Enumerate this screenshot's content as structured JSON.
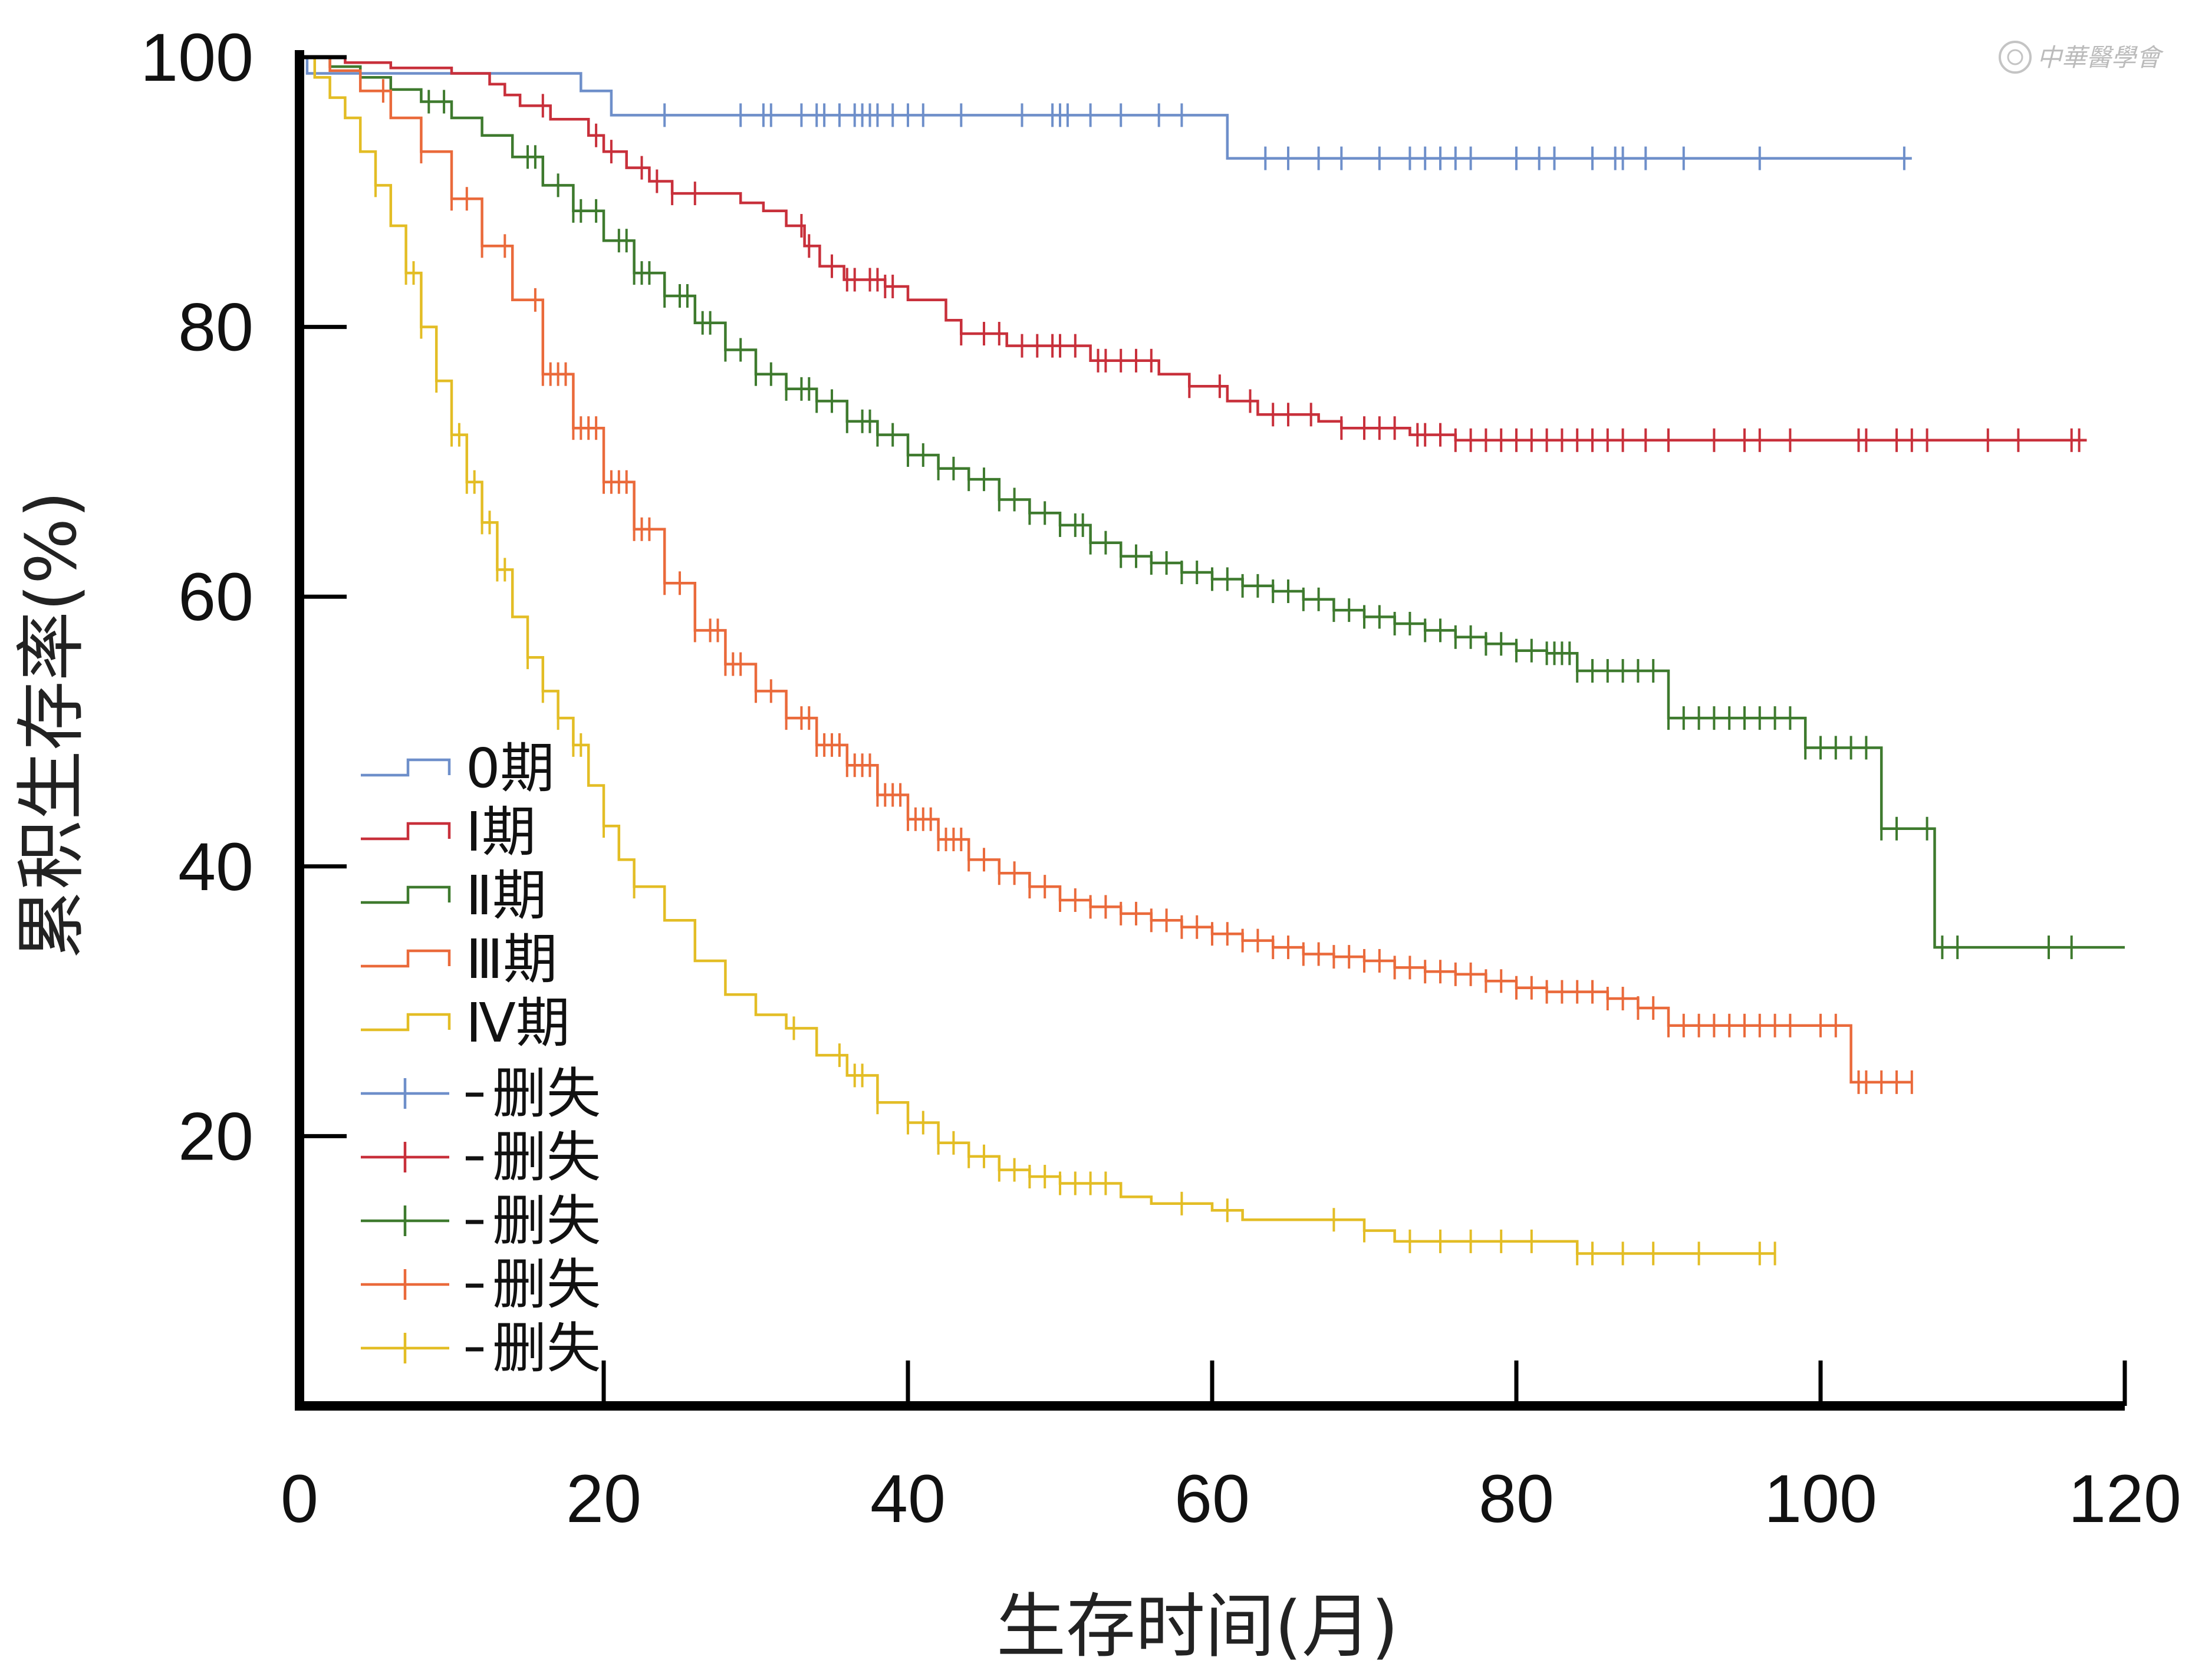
{
  "watermark": "中華醫學會",
  "chart_data": {
    "type": "line",
    "subtype": "kaplan-meier",
    "title": "",
    "xlabel": "生存时间(月)",
    "ylabel": "累积生存率(%)",
    "xlim": [
      0,
      120
    ],
    "ylim": [
      0,
      100
    ],
    "xticks": [
      "0",
      "20",
      "40",
      "60",
      "80",
      "100",
      "120"
    ],
    "yticks": [
      "20",
      "40",
      "60",
      "80",
      "100"
    ],
    "grid": false,
    "legend_position": "lower-left",
    "legend": {
      "stage_entries": [
        "0期",
        "Ⅰ期",
        "Ⅱ期",
        "Ⅲ期",
        "Ⅳ期"
      ],
      "censor_entries": [
        "删失",
        "删失",
        "删失",
        "删失",
        "删失"
      ]
    },
    "series": [
      {
        "name": "0期",
        "color": "#6e8fca",
        "points": [
          [
            0,
            100
          ],
          [
            0.5,
            98.8
          ],
          [
            18.5,
            98.8
          ],
          [
            18.5,
            97.5
          ],
          [
            20.5,
            97.5
          ],
          [
            20.5,
            95.7
          ],
          [
            61,
            95.7
          ],
          [
            61,
            92.5
          ],
          [
            106,
            92.5
          ]
        ],
        "censors": [
          24,
          29,
          30.5,
          31,
          33,
          34,
          34.5,
          35.5,
          36.5,
          37,
          37.5,
          38,
          39,
          40,
          41,
          43.5,
          47.5,
          49.5,
          50,
          50.5,
          52,
          54,
          56.5,
          58,
          63.5,
          65,
          67,
          68.5,
          71,
          73,
          74,
          75,
          76,
          77,
          80,
          81.5,
          82.5,
          85,
          86.5,
          87,
          88.5,
          91,
          96,
          105.5
        ]
      },
      {
        "name": "Ⅰ期",
        "color": "#c8303b",
        "points": [
          [
            0,
            100
          ],
          [
            3,
            99.6
          ],
          [
            6,
            99.2
          ],
          [
            10,
            98.8
          ],
          [
            12.5,
            98
          ],
          [
            13.5,
            97.2
          ],
          [
            14.5,
            96.4
          ],
          [
            16.5,
            95.4
          ],
          [
            19,
            94.2
          ],
          [
            20,
            93
          ],
          [
            21.5,
            91.8
          ],
          [
            23,
            90.8
          ],
          [
            24.5,
            89.9
          ],
          [
            29,
            89.2
          ],
          [
            30.5,
            88.6
          ],
          [
            32,
            87.5
          ],
          [
            33.2,
            86
          ],
          [
            34.2,
            84.5
          ],
          [
            35.8,
            83.5
          ],
          [
            38.5,
            83
          ],
          [
            40,
            82
          ],
          [
            42.5,
            80.5
          ],
          [
            43.5,
            79.5
          ],
          [
            46.5,
            78.6
          ],
          [
            52,
            77.5
          ],
          [
            56.5,
            76.5
          ],
          [
            58.5,
            75.6
          ],
          [
            61,
            74.5
          ],
          [
            63,
            73.5
          ],
          [
            67,
            73
          ],
          [
            68.5,
            72.5
          ],
          [
            73,
            72
          ],
          [
            76,
            71.6
          ],
          [
            117.5,
            71.6
          ]
        ],
        "censors": [
          16,
          19.5,
          20.5,
          22.5,
          23.5,
          24.5,
          26,
          33,
          33.5,
          35,
          36,
          36.5,
          37.5,
          38,
          38.5,
          39,
          43.5,
          45,
          46,
          47.5,
          48.5,
          49.5,
          50,
          51,
          52.5,
          53,
          54,
          55,
          56,
          58.5,
          60.5,
          62.5,
          64,
          65,
          66.5,
          68.5,
          70,
          71,
          72,
          73.5,
          74,
          75,
          76,
          77,
          78,
          79,
          80,
          81,
          82,
          83,
          84,
          85,
          86,
          87,
          88.5,
          90,
          93,
          95,
          96,
          98,
          102.5,
          103,
          105,
          106,
          107,
          111,
          113,
          116.5,
          117
        ]
      },
      {
        "name": "Ⅱ期",
        "color": "#3e7a2e",
        "points": [
          [
            0,
            100
          ],
          [
            2,
            99.3
          ],
          [
            4,
            98.5
          ],
          [
            6,
            97.6
          ],
          [
            8,
            96.7
          ],
          [
            10,
            95.5
          ],
          [
            12,
            94.2
          ],
          [
            14,
            92.6
          ],
          [
            16,
            90.5
          ],
          [
            18,
            88.6
          ],
          [
            20,
            86.4
          ],
          [
            22,
            84
          ],
          [
            24,
            82.3
          ],
          [
            26,
            80.3
          ],
          [
            28,
            78.3
          ],
          [
            30,
            76.5
          ],
          [
            32,
            75.4
          ],
          [
            34,
            74.5
          ],
          [
            36,
            73
          ],
          [
            38,
            72
          ],
          [
            40,
            70.5
          ],
          [
            42,
            69.5
          ],
          [
            44,
            68.7
          ],
          [
            46,
            67.2
          ],
          [
            48,
            66.2
          ],
          [
            50,
            65.3
          ],
          [
            52,
            64
          ],
          [
            54,
            63
          ],
          [
            56,
            62.5
          ],
          [
            58,
            61.8
          ],
          [
            60,
            61.3
          ],
          [
            62,
            60.8
          ],
          [
            64,
            60.4
          ],
          [
            66,
            59.8
          ],
          [
            68,
            59
          ],
          [
            70,
            58.5
          ],
          [
            72,
            58
          ],
          [
            74,
            57.5
          ],
          [
            76,
            57
          ],
          [
            78,
            56.5
          ],
          [
            80,
            56
          ],
          [
            82,
            55.8
          ],
          [
            84,
            54.5
          ],
          [
            90,
            54.5
          ],
          [
            90,
            51
          ],
          [
            99,
            51
          ],
          [
            99,
            48.8
          ],
          [
            104,
            48.8
          ],
          [
            104,
            42.8
          ],
          [
            107.5,
            42.8
          ],
          [
            107.5,
            34
          ],
          [
            120,
            34
          ]
        ],
        "censors": [
          8.5,
          9.5,
          15,
          15.5,
          17,
          18,
          18.5,
          19.5,
          21,
          21.5,
          22,
          22.5,
          23,
          24,
          25,
          25.5,
          26.5,
          27,
          28,
          29,
          30,
          31,
          32,
          33,
          33.5,
          34,
          35,
          36,
          37,
          37.5,
          38,
          39,
          40,
          41,
          42,
          43,
          44,
          45,
          46,
          47,
          48,
          49,
          50,
          51,
          51.5,
          52,
          53,
          54,
          55,
          56,
          57,
          58,
          59,
          60,
          61,
          62,
          63,
          64,
          65,
          66,
          67,
          68,
          69,
          70,
          71,
          72,
          73,
          74,
          75,
          76,
          77,
          78,
          79,
          80,
          81,
          82,
          82.5,
          83,
          83.5,
          84,
          85,
          86,
          87,
          88,
          89,
          90,
          91,
          92,
          93,
          94,
          95,
          96,
          97,
          98,
          99,
          100,
          101,
          102,
          103,
          104,
          105,
          107,
          108,
          109,
          115,
          116.5
        ]
      },
      {
        "name": "Ⅲ期",
        "color": "#ea6a3b",
        "points": [
          [
            0,
            100
          ],
          [
            2,
            99
          ],
          [
            4,
            97.5
          ],
          [
            6,
            95.5
          ],
          [
            8,
            93
          ],
          [
            10,
            89.5
          ],
          [
            12,
            86
          ],
          [
            14,
            82
          ],
          [
            16,
            76.5
          ],
          [
            18,
            72.5
          ],
          [
            20,
            68.5
          ],
          [
            22,
            65
          ],
          [
            24,
            61
          ],
          [
            26,
            57.5
          ],
          [
            28,
            55
          ],
          [
            30,
            53
          ],
          [
            32,
            51
          ],
          [
            34,
            49
          ],
          [
            36,
            47.5
          ],
          [
            38,
            45.3
          ],
          [
            40,
            43.5
          ],
          [
            42,
            42
          ],
          [
            44,
            40.5
          ],
          [
            46,
            39.5
          ],
          [
            48,
            38.5
          ],
          [
            50,
            37.5
          ],
          [
            52,
            37
          ],
          [
            54,
            36.5
          ],
          [
            56,
            36
          ],
          [
            58,
            35.5
          ],
          [
            60,
            35
          ],
          [
            62,
            34.5
          ],
          [
            64,
            34
          ],
          [
            66,
            33.5
          ],
          [
            68,
            33.3
          ],
          [
            70,
            33
          ],
          [
            72,
            32.5
          ],
          [
            74,
            32.2
          ],
          [
            76,
            32
          ],
          [
            78,
            31.5
          ],
          [
            80,
            31
          ],
          [
            82,
            30.7
          ],
          [
            86,
            30.2
          ],
          [
            88,
            29.5
          ],
          [
            90,
            28.2
          ],
          [
            102,
            28.2
          ],
          [
            102,
            24
          ],
          [
            106,
            24
          ]
        ],
        "censors": [
          5.5,
          8,
          10,
          11,
          12,
          13.5,
          15.5,
          16,
          16.5,
          17,
          17.5,
          18,
          18.5,
          19,
          19.5,
          20,
          20.5,
          21,
          21.5,
          22,
          22.5,
          23,
          24,
          25,
          26,
          27,
          27.5,
          28,
          28.5,
          29,
          30,
          31,
          32,
          33,
          33.5,
          34,
          34.5,
          35,
          35.5,
          36,
          36.5,
          37,
          37.5,
          38,
          38.5,
          39,
          39.5,
          40,
          40.5,
          41,
          41.5,
          42,
          42.5,
          43,
          43.5,
          44,
          45,
          46,
          47,
          48,
          49,
          50,
          51,
          52,
          53,
          54,
          55,
          56,
          57,
          58,
          59,
          60,
          61,
          62,
          63,
          64,
          65,
          66,
          67,
          68,
          69,
          70,
          71,
          72,
          73,
          74,
          75,
          76,
          77,
          78,
          79,
          80,
          81,
          82,
          83,
          84,
          85,
          86,
          87,
          88,
          89,
          90,
          91,
          92,
          93,
          94,
          95,
          96,
          97,
          98,
          100,
          101,
          102.5,
          103,
          104,
          105,
          106
        ]
      },
      {
        "name": "Ⅳ期",
        "color": "#e3bd25",
        "points": [
          [
            0,
            100
          ],
          [
            1,
            98.5
          ],
          [
            2,
            97
          ],
          [
            3,
            95.5
          ],
          [
            4,
            93
          ],
          [
            5,
            90.5
          ],
          [
            6,
            87.5
          ],
          [
            7,
            84
          ],
          [
            8,
            80
          ],
          [
            9,
            76
          ],
          [
            10,
            72
          ],
          [
            11,
            68.5
          ],
          [
            12,
            65.5
          ],
          [
            13,
            62
          ],
          [
            14,
            58.5
          ],
          [
            15,
            55.5
          ],
          [
            16,
            53
          ],
          [
            17,
            51
          ],
          [
            18,
            49
          ],
          [
            19,
            46
          ],
          [
            20,
            43
          ],
          [
            21,
            40.5
          ],
          [
            22,
            38.5
          ],
          [
            24,
            36
          ],
          [
            26,
            33
          ],
          [
            28,
            30.5
          ],
          [
            30,
            29
          ],
          [
            32,
            28
          ],
          [
            34,
            26
          ],
          [
            36,
            24.5
          ],
          [
            38,
            22.5
          ],
          [
            40,
            21
          ],
          [
            42,
            19.5
          ],
          [
            44,
            18.5
          ],
          [
            46,
            17.5
          ],
          [
            48,
            17
          ],
          [
            50,
            16.5
          ],
          [
            54,
            15.5
          ],
          [
            56,
            15
          ],
          [
            60,
            14.5
          ],
          [
            62,
            13.8
          ],
          [
            68,
            13.8
          ],
          [
            70,
            13
          ],
          [
            72,
            12.2
          ],
          [
            82,
            12.2
          ],
          [
            84,
            11.3
          ],
          [
            97,
            11.3
          ]
        ],
        "censors": [
          5,
          7,
          7.5,
          8,
          9,
          10,
          10.5,
          11,
          11.5,
          12,
          12.5,
          13,
          13.5,
          15,
          16,
          17,
          18,
          18.5,
          20,
          22,
          32.5,
          35.5,
          36.5,
          37,
          38,
          40,
          41,
          42,
          43,
          44,
          45,
          46,
          47,
          48,
          49,
          50,
          51,
          52,
          53,
          58,
          61,
          68,
          70,
          73,
          75,
          77,
          79,
          81,
          84,
          85,
          87,
          89,
          92,
          96,
          97
        ]
      }
    ]
  }
}
